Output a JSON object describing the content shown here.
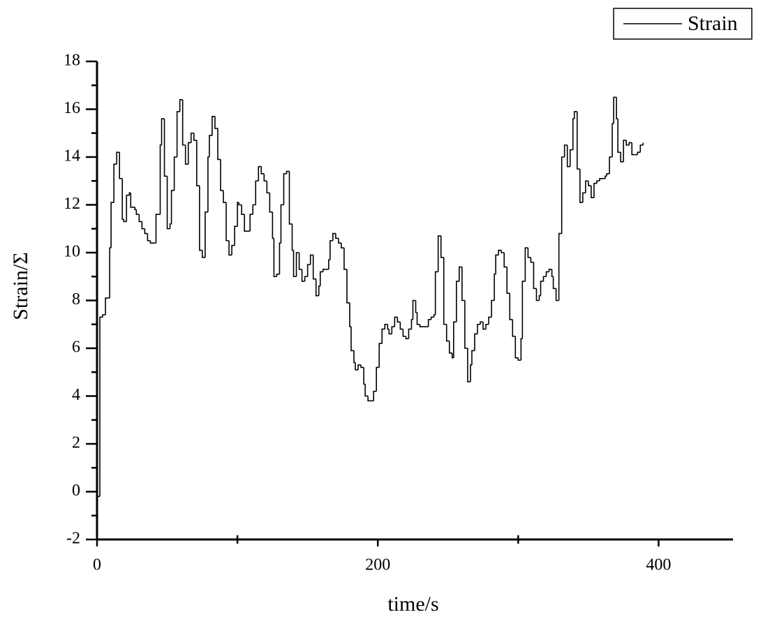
{
  "chart_data": {
    "type": "line",
    "drawstyle": "steps-post",
    "legend": "upper right",
    "xlabel": "time/s",
    "ylabel": "Strain/Σ",
    "xlim": [
      0,
      453
    ],
    "xticks": [
      0,
      200,
      400
    ],
    "ylim": [
      -2,
      18
    ],
    "yticks": [
      -2,
      0,
      2,
      4,
      6,
      8,
      10,
      12,
      14,
      16,
      18
    ],
    "x": [
      0,
      2,
      4,
      6,
      9,
      10,
      12,
      14,
      16,
      18,
      19,
      21,
      23,
      24,
      27,
      28,
      30,
      32,
      34,
      36,
      38,
      40,
      42,
      45,
      46,
      48,
      50,
      52,
      53,
      55,
      57,
      59,
      61,
      63,
      65,
      67,
      69,
      71,
      73,
      75,
      77,
      79,
      80,
      82,
      84,
      86,
      88,
      90,
      92,
      94,
      96,
      98,
      100,
      101,
      103,
      105,
      107,
      109,
      111,
      113,
      115,
      117,
      119,
      121,
      123,
      125,
      126,
      128,
      130,
      131,
      133,
      135,
      137,
      139,
      140,
      142,
      144,
      146,
      148,
      150,
      152,
      154,
      156,
      158,
      159,
      161,
      163,
      165,
      166,
      168,
      170,
      172,
      174,
      176,
      178,
      180,
      181,
      183,
      184,
      186,
      188,
      190,
      191,
      193,
      195,
      197,
      199,
      201,
      203,
      205,
      207,
      208,
      210,
      212,
      214,
      216,
      218,
      220,
      222,
      224,
      225,
      227,
      228,
      230,
      234,
      236,
      238,
      240,
      241,
      243,
      245,
      247,
      249,
      251,
      253,
      254,
      256,
      258,
      260,
      262,
      264,
      266,
      267,
      269,
      271,
      273,
      275,
      277,
      279,
      281,
      283,
      284,
      286,
      288,
      290,
      292,
      294,
      296,
      298,
      300,
      302,
      303,
      305,
      307,
      309,
      311,
      313,
      315,
      316,
      318,
      320,
      322,
      324,
      325,
      327,
      329,
      331,
      333,
      335,
      337,
      339,
      340,
      342,
      344,
      346,
      348,
      350,
      352,
      354,
      356,
      358,
      360,
      362,
      363,
      365,
      367,
      368,
      370,
      371,
      373,
      375,
      377,
      379,
      381,
      383,
      385,
      387,
      389
    ],
    "series": [
      {
        "name": "Strain",
        "color": "#000000",
        "values": [
          -0.2,
          7.3,
          7.4,
          8.1,
          10.2,
          12.1,
          13.7,
          14.2,
          13.1,
          11.4,
          11.3,
          12.4,
          12.5,
          11.9,
          11.8,
          11.6,
          11.3,
          11.0,
          10.8,
          10.5,
          10.4,
          10.4,
          11.6,
          14.5,
          15.6,
          13.2,
          11.0,
          11.2,
          12.6,
          14.0,
          15.9,
          16.4,
          14.5,
          13.7,
          14.6,
          15.0,
          14.7,
          12.8,
          10.1,
          9.8,
          11.7,
          14.0,
          14.9,
          15.7,
          15.2,
          13.9,
          12.6,
          12.1,
          10.5,
          9.9,
          10.3,
          11.1,
          12.1,
          12.0,
          11.6,
          10.9,
          10.9,
          11.6,
          12.0,
          13.0,
          13.6,
          13.3,
          13.0,
          12.5,
          11.7,
          10.6,
          9.0,
          9.1,
          10.4,
          12.0,
          13.3,
          13.4,
          11.2,
          10.1,
          9.0,
          10.0,
          9.3,
          8.8,
          9.0,
          9.5,
          9.9,
          8.9,
          8.2,
          8.6,
          9.2,
          9.3,
          9.3,
          9.7,
          10.5,
          10.8,
          10.6,
          10.4,
          10.2,
          9.3,
          7.9,
          6.9,
          5.9,
          5.4,
          5.1,
          5.3,
          5.2,
          4.5,
          4.0,
          3.8,
          3.8,
          4.2,
          5.2,
          6.2,
          6.8,
          7.0,
          6.8,
          6.6,
          6.9,
          7.3,
          7.1,
          6.8,
          6.5,
          6.4,
          6.8,
          7.2,
          8.0,
          7.5,
          7.0,
          6.9,
          6.9,
          7.2,
          7.3,
          7.4,
          9.2,
          10.7,
          9.8,
          7.0,
          6.3,
          5.8,
          5.6,
          7.1,
          8.8,
          9.4,
          8.0,
          6.0,
          4.6,
          5.3,
          5.9,
          6.6,
          7.0,
          7.1,
          6.8,
          7.0,
          7.3,
          8.0,
          9.1,
          9.9,
          10.1,
          10.0,
          9.4,
          8.3,
          7.2,
          6.5,
          5.6,
          5.5,
          6.4,
          8.8,
          10.2,
          9.8,
          9.6,
          8.5,
          8.0,
          8.2,
          8.8,
          9.0,
          9.2,
          9.3,
          9.0,
          8.5,
          8.0,
          10.8,
          14.0,
          14.5,
          13.6,
          14.3,
          15.6,
          15.9,
          13.5,
          12.1,
          12.5,
          13.0,
          12.8,
          12.3,
          12.9,
          13.0,
          13.1,
          13.1,
          13.2,
          13.3,
          14.0,
          15.4,
          16.5,
          15.6,
          14.2,
          13.8,
          14.7,
          14.5,
          14.6,
          14.1,
          14.1,
          14.2,
          14.5,
          14.6
        ]
      }
    ]
  }
}
